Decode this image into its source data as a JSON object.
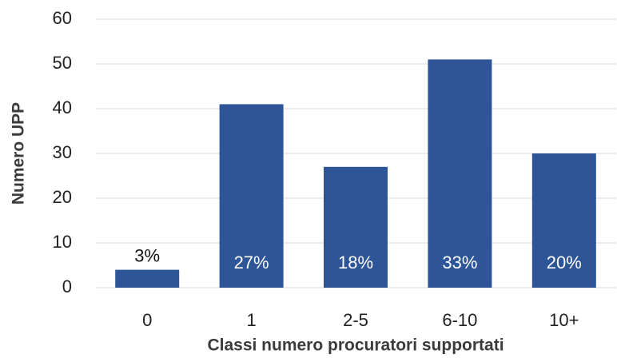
{
  "chart_data": {
    "type": "bar",
    "xlabel": "Classi numero procuratori supportati",
    "ylabel": "Numero UPP",
    "categories": [
      "0",
      "1",
      "2-5",
      "6-10",
      "10+"
    ],
    "values": [
      4,
      41,
      27,
      51,
      30
    ],
    "annotations": [
      "3%",
      "27%",
      "18%",
      "33%",
      "20%"
    ],
    "color": "#2e5597",
    "ylim": [
      0,
      60
    ],
    "yticks": [
      0,
      10,
      20,
      30,
      40,
      50,
      60
    ],
    "grid": true
  }
}
